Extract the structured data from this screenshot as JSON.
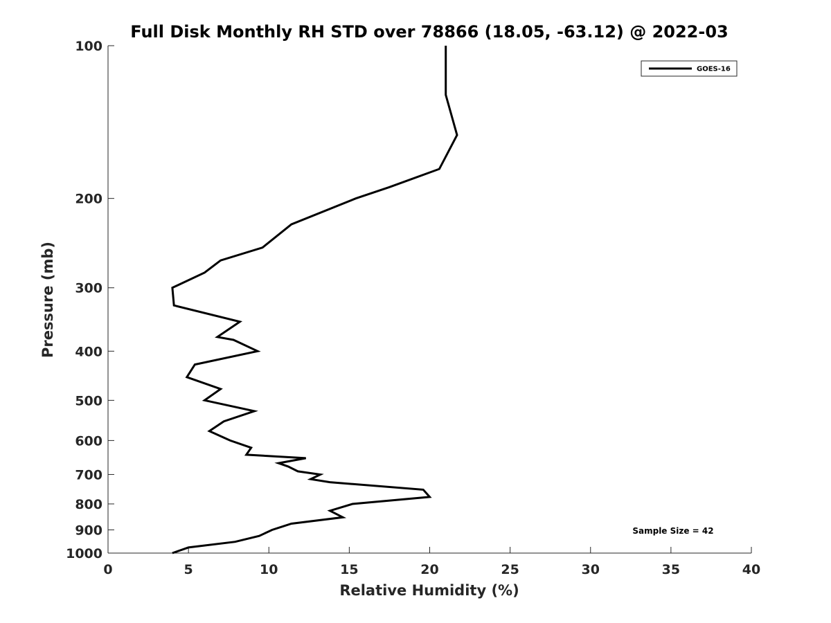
{
  "chart_data": {
    "type": "line",
    "title": "Full Disk Monthly RH STD over 78866 (18.05, -63.12) @ 2022-03",
    "xlabel": "Relative Humidity (%)",
    "ylabel": "Pressure (mb)",
    "xlim": [
      0,
      40
    ],
    "ylim": [
      100,
      1000
    ],
    "y_scale": "log",
    "y_reversed": true,
    "x_ticks": [
      "0",
      "5",
      "10",
      "15",
      "20",
      "25",
      "30",
      "35",
      "40"
    ],
    "y_ticks": [
      "100",
      "200",
      "300",
      "400",
      "500",
      "600",
      "700",
      "800",
      "900",
      "1000"
    ],
    "grid": false,
    "legend": {
      "position": "top-right",
      "entries": [
        "GOES-16"
      ]
    },
    "annotations": [
      {
        "text": "Sample Size = 42",
        "position": "bottom-right"
      }
    ],
    "series": [
      {
        "name": "GOES-16",
        "color": "#000000",
        "points": [
          [
            21.0,
            100
          ],
          [
            21.0,
            125
          ],
          [
            21.7,
            150
          ],
          [
            20.6,
            175
          ],
          [
            17.5,
            190
          ],
          [
            15.4,
            200
          ],
          [
            11.4,
            225
          ],
          [
            9.6,
            250
          ],
          [
            7.0,
            265
          ],
          [
            6.0,
            280
          ],
          [
            4.0,
            300
          ],
          [
            4.1,
            325
          ],
          [
            8.2,
            350
          ],
          [
            6.8,
            375
          ],
          [
            7.8,
            380
          ],
          [
            9.3,
            400
          ],
          [
            5.4,
            425
          ],
          [
            4.9,
            450
          ],
          [
            7.0,
            475
          ],
          [
            6.0,
            500
          ],
          [
            9.1,
            525
          ],
          [
            7.2,
            550
          ],
          [
            6.3,
            575
          ],
          [
            7.6,
            600
          ],
          [
            8.9,
            620
          ],
          [
            8.6,
            640
          ],
          [
            12.3,
            650
          ],
          [
            10.6,
            665
          ],
          [
            11.2,
            675
          ],
          [
            11.8,
            690
          ],
          [
            13.2,
            700
          ],
          [
            12.6,
            715
          ],
          [
            13.8,
            725
          ],
          [
            19.6,
            750
          ],
          [
            20.0,
            775
          ],
          [
            15.2,
            800
          ],
          [
            13.8,
            825
          ],
          [
            14.6,
            850
          ],
          [
            11.4,
            875
          ],
          [
            10.2,
            900
          ],
          [
            9.4,
            925
          ],
          [
            7.9,
            950
          ],
          [
            5.0,
            975
          ],
          [
            4.0,
            1000
          ]
        ]
      }
    ]
  }
}
